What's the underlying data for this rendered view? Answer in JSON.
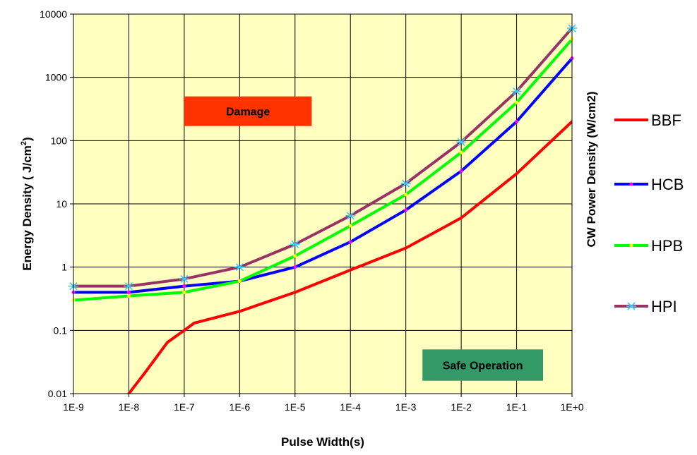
{
  "chart_data": {
    "type": "line",
    "title": "",
    "xlabel": "Pulse Width(s)",
    "ylabel": "Energy Density ( J/cm²)",
    "ylabel_main": "Energy Density ( J/cm",
    "ylabel_sup": "2",
    "ylabel_end": ")",
    "ylabel_right": "CW Power Density (W/cm2)",
    "x_scale": "log",
    "y_scale": "log",
    "xlim": [
      1e-09,
      1
    ],
    "ylim": [
      0.01,
      10000
    ],
    "grid": true,
    "x_ticks": [
      1e-09,
      1e-08,
      1e-07,
      1e-06,
      1e-05,
      0.0001,
      0.001,
      0.01,
      0.1,
      1
    ],
    "x_tick_labels": [
      "1E-9",
      "1E-8",
      "1E-7",
      "1E-6",
      "1E-5",
      "1E-4",
      "1E-3",
      "1E-2",
      "1E-1",
      "1E+0"
    ],
    "y_ticks": [
      0.01,
      0.1,
      1,
      10,
      100,
      1000,
      10000
    ],
    "y_tick_labels": [
      "0.01",
      "0.1",
      "1",
      "10",
      "100",
      "1000",
      "10000"
    ],
    "legend_position": "right",
    "plot_background": "#ffffc0",
    "annotations": [
      {
        "text": "Damage",
        "x_from": 1e-07,
        "x_to": 2e-05,
        "y_from": 170,
        "y_to": 500,
        "fill": "#ff3300"
      },
      {
        "text": "Safe Operation",
        "x_from": 0.002,
        "x_to": 0.3,
        "y_from": 0.016,
        "y_to": 0.05,
        "fill": "#339966"
      }
    ],
    "series": [
      {
        "name": "BBF",
        "color": "#ff0000",
        "marker": "none",
        "x": [
          7e-09,
          1e-08,
          2e-08,
          5e-08,
          1e-07,
          1.5e-07,
          1e-06,
          1e-05,
          0.0001,
          0.001,
          0.01,
          0.1,
          1
        ],
        "y": [
          0.007,
          0.01,
          0.022,
          0.065,
          0.1,
          0.13,
          0.2,
          0.4,
          0.9,
          2,
          6,
          30,
          200
        ]
      },
      {
        "name": "HCB",
        "color": "#0000ff",
        "marker": "dot",
        "marker_color": "#ff00ff",
        "x": [
          1e-09,
          1e-08,
          1e-07,
          1e-06,
          1e-05,
          0.0001,
          0.001,
          0.01,
          0.1,
          1
        ],
        "y": [
          0.4,
          0.4,
          0.5,
          0.6,
          1,
          2.5,
          8,
          33,
          200,
          2000
        ]
      },
      {
        "name": "HPB",
        "color": "#00ff00",
        "marker": "dot",
        "marker_color": "#ffff00",
        "x": [
          1e-09,
          1e-08,
          1e-07,
          1e-06,
          1e-05,
          0.0001,
          0.001,
          0.01,
          0.1,
          1
        ],
        "y": [
          0.3,
          0.35,
          0.4,
          0.6,
          1.5,
          4.5,
          14,
          65,
          400,
          4000
        ]
      },
      {
        "name": "HPI",
        "color": "#993366",
        "marker": "x",
        "marker_color": "#33ccff",
        "x": [
          1e-09,
          1e-08,
          1e-07,
          1e-06,
          1e-05,
          0.0001,
          0.001,
          0.01,
          0.1,
          1
        ],
        "y": [
          0.5,
          0.5,
          0.65,
          1,
          2.3,
          6.5,
          21,
          95,
          600,
          6000
        ]
      }
    ]
  }
}
